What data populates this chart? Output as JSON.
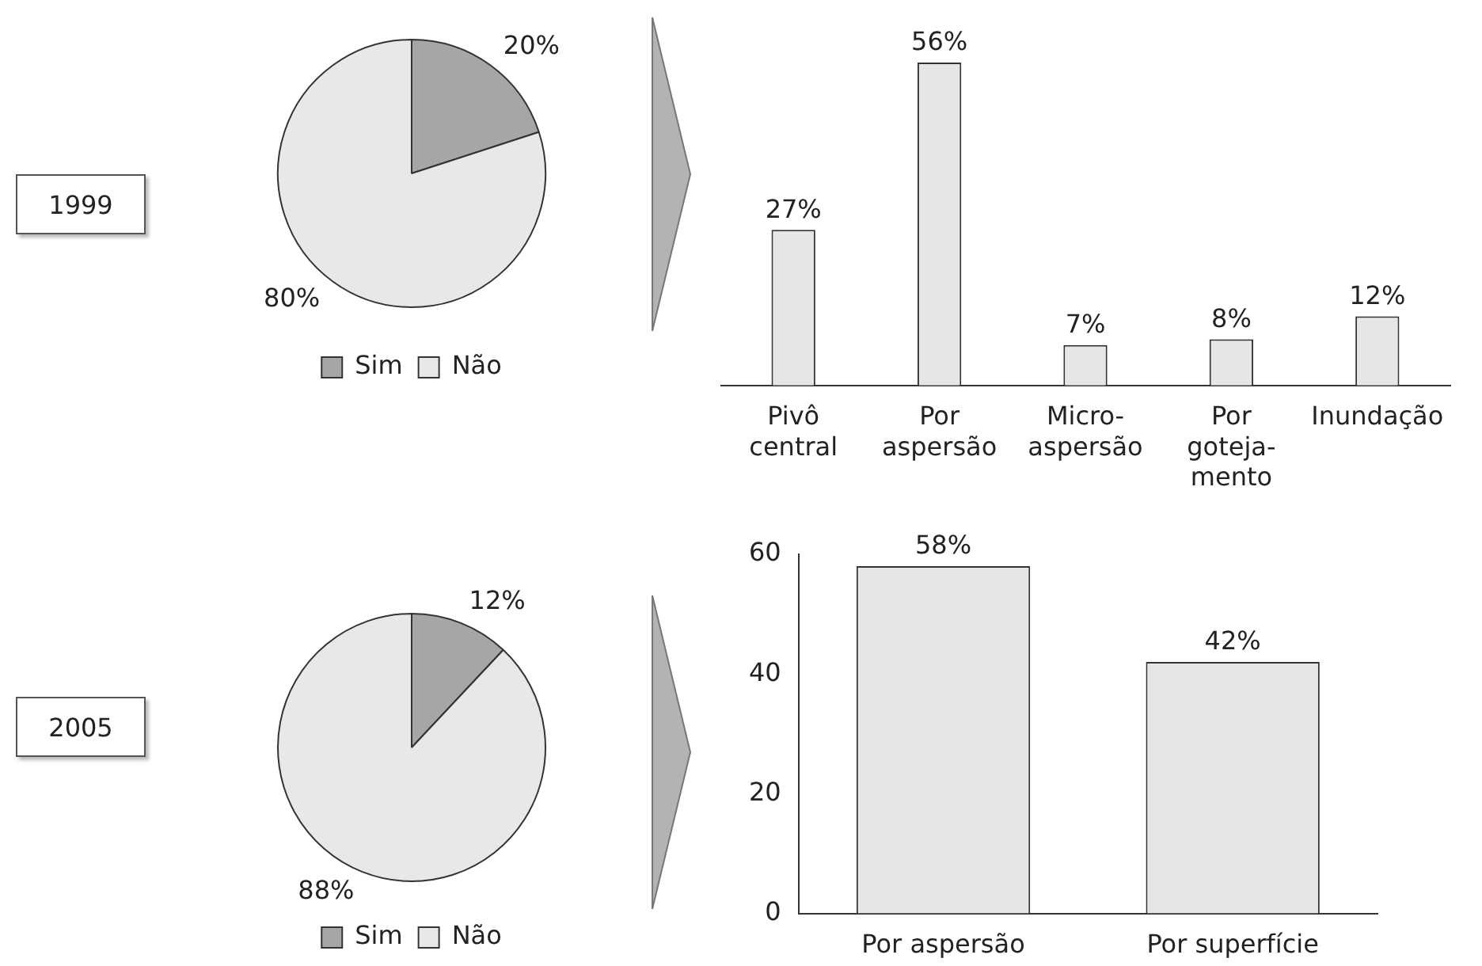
{
  "chart_data": [
    {
      "type": "pie",
      "title": "1999",
      "categories": [
        "Sim",
        "Não"
      ],
      "values": [
        20,
        80
      ],
      "colors": [
        "#a6a6a6",
        "#e8e8e8"
      ],
      "value_labels": [
        "20%",
        "80%"
      ],
      "legend": "bottom"
    },
    {
      "type": "bar",
      "categories": [
        "Pivô\ncentral",
        "Por\naspersão",
        "Micro-\naspersão",
        "Por\ngoteja-\nmento",
        "Inundação"
      ],
      "values": [
        27,
        56,
        7,
        8,
        12
      ],
      "value_labels": [
        "27%",
        "56%",
        "7%",
        "8%",
        "12%"
      ],
      "color": "#e6e6e6"
    },
    {
      "type": "pie",
      "title": "2005",
      "categories": [
        "Sim",
        "Não"
      ],
      "values": [
        12,
        88
      ],
      "colors": [
        "#a6a6a6",
        "#e8e8e8"
      ],
      "value_labels": [
        "12%",
        "88%"
      ],
      "legend": "bottom"
    },
    {
      "type": "bar",
      "categories": [
        "Por aspersão",
        "Por superfície"
      ],
      "values": [
        58,
        42
      ],
      "value_labels": [
        "58%",
        "42%"
      ],
      "color": "#e6e6e6",
      "ylim": [
        0,
        60
      ],
      "yticks": [
        0,
        20,
        40,
        60
      ]
    }
  ]
}
